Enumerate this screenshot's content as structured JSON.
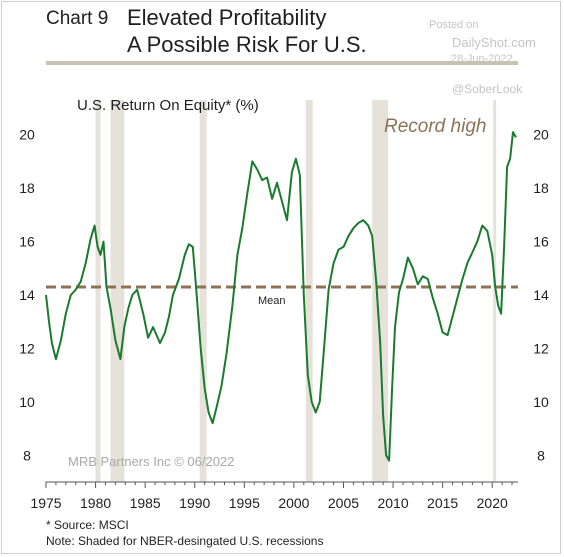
{
  "header": {
    "chart_number": "Chart 9",
    "title_line1": "Elevated Profitability",
    "title_line2": "A Possible Risk For U.S."
  },
  "watermark": {
    "posted_on": "Posted on",
    "site": "DailyShot.com",
    "date": "28-Jun-2022",
    "handle": "@SoberLook"
  },
  "footer": {
    "source": "* Source: MSCI",
    "note": "Note: Shaded for NBER-desingated U.S. recessions"
  },
  "colors": {
    "line": "#1a7a2e",
    "mean": "#8c7355",
    "record": "#8c7355",
    "recession": "#e6e2da",
    "rule": "#c9c1b2"
  },
  "chart_data": {
    "type": "line",
    "title": "U.S. Return On Equity* (%)",
    "source_label": "MRB Partners Inc © 06/2022",
    "xlim": [
      1975,
      2022.6
    ],
    "ylim": [
      7,
      21.3
    ],
    "x_ticks": [
      1975,
      1980,
      1985,
      1990,
      1995,
      2000,
      2005,
      2010,
      2015,
      2020
    ],
    "y_ticks": [
      8,
      10,
      12,
      14,
      16,
      18,
      20
    ],
    "mean": {
      "label": "Mean",
      "value": 14.3
    },
    "annotation": "Record high",
    "recessions": [
      [
        1980.0,
        1980.5
      ],
      [
        1981.5,
        1982.9
      ],
      [
        1990.5,
        1991.2
      ],
      [
        2001.2,
        2001.9
      ],
      [
        2007.9,
        2009.5
      ],
      [
        2020.1,
        2020.4
      ]
    ],
    "series": [
      {
        "x": [
          1975.0,
          1975.3,
          1975.6,
          1976.0,
          1976.5,
          1977.0,
          1977.5,
          1978.0,
          1978.5,
          1979.0,
          1979.5,
          1979.9,
          1980.2,
          1980.5,
          1980.8,
          1981.1,
          1981.5,
          1982.0,
          1982.5,
          1982.9,
          1983.3,
          1983.7,
          1984.2,
          1984.8,
          1985.3,
          1985.8,
          1986.5,
          1987.0,
          1987.4,
          1987.8,
          1988.4,
          1989.0,
          1989.4,
          1989.8,
          1990.2,
          1990.6,
          1991.0,
          1991.4,
          1991.8,
          1992.2,
          1992.7,
          1993.2,
          1993.8,
          1994.3,
          1994.8,
          1995.3,
          1995.8,
          1996.3,
          1996.8,
          1997.3,
          1997.8,
          1998.3,
          1998.8,
          1999.3,
          1999.8,
          2000.2,
          2000.6,
          2001.0,
          2001.4,
          2001.8,
          2002.2,
          2002.6,
          2003.0,
          2003.5,
          2004.0,
          2004.5,
          2005.0,
          2005.5,
          2006.0,
          2006.5,
          2007.0,
          2007.5,
          2007.9,
          2008.3,
          2008.7,
          2009.0,
          2009.3,
          2009.6,
          2009.9,
          2010.2,
          2010.6,
          2011.0,
          2011.5,
          2012.0,
          2012.5,
          2013.0,
          2013.5,
          2014.0,
          2014.5,
          2015.0,
          2015.5,
          2016.0,
          2016.5,
          2017.0,
          2017.5,
          2018.0,
          2018.5,
          2019.0,
          2019.5,
          2020.0,
          2020.3,
          2020.6,
          2020.9,
          2021.2,
          2021.5,
          2021.8,
          2022.1,
          2022.4
        ],
        "values": [
          14.0,
          13.0,
          12.2,
          11.6,
          12.3,
          13.3,
          14.0,
          14.2,
          14.5,
          15.2,
          16.1,
          16.6,
          15.8,
          15.5,
          16.0,
          14.3,
          13.5,
          12.3,
          11.6,
          12.8,
          13.5,
          14.0,
          14.2,
          13.3,
          12.4,
          12.8,
          12.2,
          12.6,
          13.2,
          14.0,
          14.6,
          15.5,
          15.9,
          15.8,
          14.0,
          12.0,
          10.5,
          9.6,
          9.2,
          9.8,
          10.6,
          11.8,
          13.6,
          15.5,
          16.5,
          17.8,
          19.0,
          18.7,
          18.3,
          18.4,
          17.6,
          18.2,
          17.5,
          16.8,
          18.6,
          19.1,
          18.5,
          14.0,
          11.0,
          10.0,
          9.6,
          10.0,
          11.8,
          14.2,
          15.2,
          15.7,
          15.8,
          16.2,
          16.5,
          16.7,
          16.8,
          16.6,
          16.2,
          14.5,
          12.2,
          9.5,
          8.0,
          7.8,
          10.5,
          12.8,
          14.1,
          14.6,
          15.4,
          15.0,
          14.4,
          14.7,
          14.6,
          13.9,
          13.3,
          12.6,
          12.5,
          13.2,
          13.9,
          14.6,
          15.2,
          15.6,
          16.0,
          16.6,
          16.4,
          15.5,
          14.3,
          13.6,
          13.3,
          15.8,
          18.8,
          19.1,
          20.1,
          19.9
        ]
      }
    ]
  }
}
